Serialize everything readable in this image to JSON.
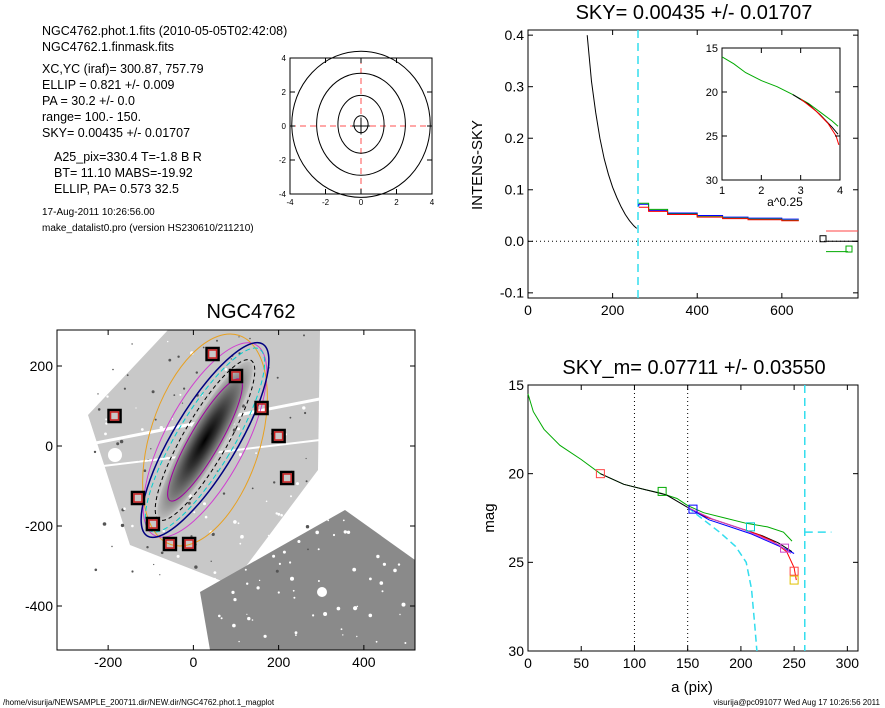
{
  "info": {
    "lines": [
      "NGC4762.phot.1.fits  (2010-05-05T02:42:08)",
      "NGC4762.1.finmask.fits",
      "XC,YC (iraf)=   300.87, 757.79",
      "ELLIP = 0.821 +/- 0.009",
      "PA    =  30.2 +/-   0.0",
      "range=  100.-  150.",
      "SKY= 0.00435 +/- 0.01707",
      "A25_pix=330.4   T=-1.8  B R",
      "BT=  11.10   MABS=-19.92",
      "ELLIP, PA= 0.573    32.5",
      "17-Aug-2011 10:26:56.00",
      "make_datalist0.pro (version HS230610/211210)"
    ]
  },
  "footer": {
    "left": "/home/visurija/NEWSAMPLE_200711.dir/NEW.dir/NGC4762.phot.1_magplot",
    "right": "visurija@pc091077  Wed Aug 17 10:26:56 2011"
  },
  "chart_data": [
    {
      "id": "contour",
      "type": "contour",
      "xlim": [
        -4,
        4
      ],
      "ylim": [
        -4,
        4
      ],
      "xticks": [
        "-4",
        "-2",
        "0",
        "2",
        "4"
      ],
      "yticks": [
        "-4",
        "-2",
        "0",
        "2",
        "4"
      ]
    },
    {
      "id": "sky",
      "type": "line",
      "title": "SKY= 0.00435 +/- 0.01707",
      "ylabel": "INTENS-SKY",
      "xlim": [
        0,
        780
      ],
      "ylim": [
        -0.11,
        0.41
      ],
      "xticks": [
        "0",
        "200",
        "400",
        "600"
      ],
      "yticks": [
        "-0.1",
        "0.0",
        "0.1",
        "0.2",
        "0.3",
        "0.4"
      ],
      "sky_marker_x": 260,
      "series": [
        {
          "color": "#000000",
          "points": [
            [
              140,
              0.4
            ],
            [
              150,
              0.31
            ],
            [
              160,
              0.25
            ],
            [
              170,
              0.2
            ],
            [
              180,
              0.16
            ],
            [
              190,
              0.13
            ],
            [
              200,
              0.105
            ],
            [
              210,
              0.085
            ],
            [
              220,
              0.067
            ],
            [
              230,
              0.052
            ],
            [
              240,
              0.04
            ],
            [
              250,
              0.03
            ],
            [
              257,
              0.025
            ]
          ]
        },
        {
          "color": "#0000ff",
          "points": [
            [
              262,
              0.068
            ],
            [
              262,
              0.072
            ],
            [
              285,
              0.072
            ],
            [
              285,
              0.06
            ],
            [
              330,
              0.06
            ],
            [
              330,
              0.055
            ],
            [
              400,
              0.055
            ],
            [
              400,
              0.05
            ],
            [
              460,
              0.05
            ],
            [
              460,
              0.047
            ],
            [
              520,
              0.047
            ],
            [
              520,
              0.045
            ],
            [
              600,
              0.045
            ],
            [
              600,
              0.043
            ],
            [
              640,
              0.043
            ]
          ]
        },
        {
          "color": "#00aa00",
          "points": [
            [
              262,
              0.074
            ],
            [
              285,
              0.074
            ],
            [
              285,
              0.062
            ],
            [
              330,
              0.062
            ],
            [
              330,
              0.053
            ],
            [
              400,
              0.053
            ],
            [
              400,
              0.048
            ],
            [
              460,
              0.048
            ],
            [
              460,
              0.045
            ],
            [
              520,
              0.045
            ],
            [
              520,
              0.043
            ],
            [
              600,
              0.043
            ],
            [
              600,
              0.041
            ],
            [
              640,
              0.041
            ]
          ]
        },
        {
          "color": "#ff0000",
          "points": [
            [
              262,
              0.066
            ],
            [
              285,
              0.066
            ],
            [
              285,
              0.058
            ],
            [
              330,
              0.058
            ],
            [
              330,
              0.052
            ],
            [
              400,
              0.052
            ],
            [
              400,
              0.047
            ],
            [
              460,
              0.047
            ],
            [
              460,
              0.044
            ],
            [
              520,
              0.044
            ],
            [
              520,
              0.042
            ],
            [
              600,
              0.042
            ],
            [
              600,
              0.04
            ],
            [
              640,
              0.04
            ]
          ]
        }
      ],
      "inset": {
        "type": "line",
        "xlabel": "a^0.25",
        "xlim": [
          1,
          4
        ],
        "ylim": [
          30,
          15
        ],
        "xticks": [
          "1",
          "2",
          "3",
          "4"
        ],
        "yticks": [
          "15",
          "20",
          "25",
          "30"
        ],
        "series": [
          {
            "color": "#00aa00",
            "points": [
              [
                1,
                16.0
              ],
              [
                1.3,
                16.8
              ],
              [
                1.6,
                17.8
              ],
              [
                2.0,
                18.7
              ],
              [
                2.4,
                19.4
              ],
              [
                2.8,
                20.3
              ],
              [
                3.2,
                21.3
              ],
              [
                3.5,
                22.3
              ],
              [
                3.8,
                23.3
              ],
              [
                3.95,
                23.9
              ]
            ]
          },
          {
            "color": "#000000",
            "points": [
              [
                2.8,
                20.3
              ],
              [
                3.2,
                21.4
              ],
              [
                3.5,
                22.6
              ],
              [
                3.8,
                24.0
              ],
              [
                3.95,
                24.8
              ]
            ]
          },
          {
            "color": "#ff0000",
            "points": [
              [
                3.0,
                20.8
              ],
              [
                3.4,
                22.2
              ],
              [
                3.7,
                23.6
              ],
              [
                3.9,
                25.0
              ],
              [
                3.97,
                26.0
              ]
            ]
          }
        ]
      }
    },
    {
      "id": "image",
      "type": "image",
      "title": "NGC4762",
      "xlim": [
        -320,
        520
      ],
      "ylim": [
        -510,
        290
      ],
      "xticks": [
        "-200",
        "0",
        "200",
        "400"
      ],
      "yticks": [
        "200",
        "0",
        "-200",
        "-400"
      ],
      "squares": [
        [
          45,
          230
        ],
        [
          100,
          175
        ],
        [
          -185,
          75
        ],
        [
          160,
          95
        ],
        [
          200,
          25
        ],
        [
          220,
          -80
        ],
        [
          -130,
          -130
        ],
        [
          -95,
          -195
        ],
        [
          -55,
          -245
        ],
        [
          -10,
          -245
        ]
      ]
    },
    {
      "id": "mag",
      "type": "line",
      "title": "SKY_m=  0.07711 +/- 0.03550",
      "ylabel": "mag",
      "xlabel": "a (pix)",
      "xlim": [
        0,
        310
      ],
      "ylim": [
        30,
        15
      ],
      "xticks": [
        "0",
        "50",
        "100",
        "150",
        "200",
        "250",
        "300"
      ],
      "yticks": [
        "15",
        "20",
        "25",
        "30"
      ],
      "range_lines": [
        100,
        150
      ],
      "sky_marker_x": 260,
      "sky_marker_mag": 23.3,
      "series": [
        {
          "color": "#00aa00",
          "points": [
            [
              0,
              15.5
            ],
            [
              5,
              16.5
            ],
            [
              15,
              17.5
            ],
            [
              30,
              18.4
            ],
            [
              50,
              19.2
            ],
            [
              68,
              20.0
            ],
            [
              90,
              20.6
            ],
            [
              110,
              20.9
            ],
            [
              125,
              21.1
            ],
            [
              140,
              21.4
            ],
            [
              150,
              21.8
            ],
            [
              165,
              22.2
            ],
            [
              185,
              22.5
            ],
            [
              205,
              22.8
            ],
            [
              225,
              23.0
            ],
            [
              240,
              23.3
            ],
            [
              248,
              23.8
            ]
          ]
        },
        {
          "color": "#000000",
          "points": [
            [
              68,
              20.0
            ],
            [
              90,
              20.6
            ],
            [
              110,
              20.9
            ],
            [
              130,
              21.2
            ],
            [
              150,
              21.9
            ],
            [
              165,
              22.4
            ],
            [
              185,
              22.8
            ],
            [
              205,
              23.2
            ],
            [
              220,
              23.5
            ],
            [
              235,
              23.9
            ],
            [
              248,
              24.4
            ]
          ]
        },
        {
          "color": "#ff0000",
          "points": [
            [
              150,
              21.9
            ],
            [
              170,
              22.5
            ],
            [
              195,
              23.0
            ],
            [
              215,
              23.4
            ],
            [
              230,
              23.8
            ],
            [
              243,
              24.4
            ],
            [
              250,
              25.3
            ],
            [
              252,
              26.0
            ]
          ]
        },
        {
          "color": "#0000ff",
          "points": [
            [
              150,
              21.9
            ],
            [
              170,
              22.6
            ],
            [
              190,
              23.0
            ],
            [
              210,
              23.4
            ],
            [
              225,
              23.8
            ],
            [
              240,
              24.2
            ],
            [
              250,
              24.5
            ]
          ]
        },
        {
          "color": "#cc44cc",
          "points": [
            [
              150,
              21.9
            ],
            [
              175,
              22.6
            ],
            [
              200,
              23.1
            ],
            [
              220,
              23.6
            ],
            [
              235,
              24.0
            ],
            [
              247,
              24.5
            ]
          ]
        }
      ],
      "squares": [
        {
          "x": 68,
          "y": 20.0,
          "color": "#ff4444"
        },
        {
          "x": 126,
          "y": 21.0,
          "color": "#00aa00"
        },
        {
          "x": 155,
          "y": 22.0,
          "color": "#0000ff"
        },
        {
          "x": 209,
          "y": 23.0,
          "color": "#00cccc"
        },
        {
          "x": 241,
          "y": 24.2,
          "color": "#cc44cc"
        },
        {
          "x": 250,
          "y": 25.5,
          "color": "#ff4444"
        },
        {
          "x": 250,
          "y": 26.0,
          "color": "#e0c000"
        }
      ]
    }
  ]
}
